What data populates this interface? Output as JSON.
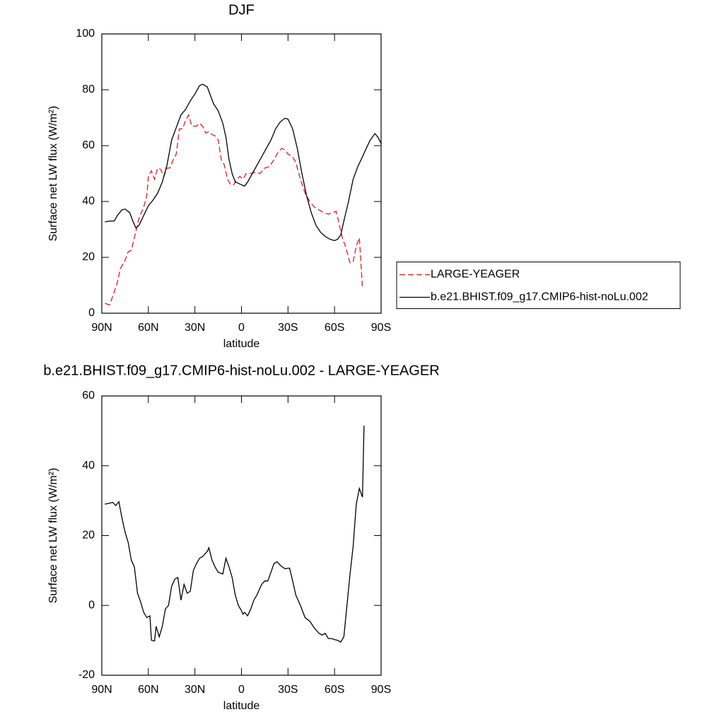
{
  "chart_data": [
    {
      "type": "line",
      "title": "DJF",
      "xlabel": "latitude",
      "ylabel": "Surface net LW flux (W/m²)",
      "xlim": [
        90,
        -90
      ],
      "ylim": [
        0,
        100
      ],
      "xticks": [
        {
          "value": 90,
          "label": "90N"
        },
        {
          "value": 60,
          "label": "60N"
        },
        {
          "value": 30,
          "label": "30N"
        },
        0,
        {
          "value": -30,
          "label": "30S"
        },
        {
          "value": -60,
          "label": "60S"
        },
        {
          "value": -90,
          "label": "90S"
        }
      ],
      "yticks": [
        0,
        20,
        40,
        60,
        80,
        100
      ],
      "legend": "right",
      "series": [
        {
          "name": "LARGE-YEAGER",
          "color": "#e41a1c",
          "dash": true,
          "x": [
            88,
            85,
            83,
            80,
            78,
            75,
            73,
            71,
            69,
            66,
            63,
            61,
            60,
            58,
            56,
            54,
            52,
            50,
            48,
            46,
            44,
            42,
            40,
            38,
            36,
            34,
            32,
            29,
            27,
            25,
            23,
            21,
            19,
            17,
            15,
            13,
            11,
            9,
            7,
            5,
            3,
            1,
            -1,
            -3,
            -6,
            -9,
            -12,
            -15,
            -18,
            -21,
            -24,
            -26,
            -28,
            -30,
            -33,
            -35,
            -38,
            -41,
            -44,
            -47,
            -50,
            -53,
            -56,
            -59,
            -61,
            -63,
            -65,
            -67,
            -70,
            -72,
            -74,
            -76,
            -78
          ],
          "values": [
            3.5,
            3,
            6,
            11,
            16,
            19,
            22,
            22.5,
            27,
            34,
            38,
            42,
            49,
            51,
            48,
            52,
            51.5,
            49,
            52,
            52,
            55,
            57,
            66,
            66,
            69,
            71,
            67,
            67,
            68,
            67,
            64.5,
            65,
            64,
            63.5,
            62,
            55,
            53,
            48,
            46,
            46,
            48,
            49,
            48,
            50,
            50,
            50.5,
            50,
            52,
            52.5,
            55,
            58,
            59,
            58.5,
            57,
            56,
            54,
            48,
            43,
            40,
            38,
            37,
            36,
            35.5,
            36,
            36.5,
            32,
            27,
            24,
            18,
            18.5,
            24,
            27,
            9
          ]
        },
        {
          "name": "b.e21.BHIST.f09_g17.CMIP6-hist-noLu.002",
          "color": "#000000",
          "dash": false,
          "x": [
            88,
            85,
            82,
            80,
            77,
            75,
            72,
            70,
            68,
            66,
            63,
            60,
            57,
            54,
            51,
            48,
            45,
            42,
            39,
            36,
            33,
            30,
            27,
            25,
            22,
            20,
            18,
            15,
            12,
            10,
            8,
            6,
            4,
            2,
            0,
            -2,
            -4,
            -7,
            -10,
            -13,
            -16,
            -19,
            -22,
            -25,
            -28,
            -30,
            -33,
            -36,
            -39,
            -42,
            -45,
            -48,
            -51,
            -54,
            -57,
            -60,
            -62,
            -64,
            -66,
            -69,
            -72,
            -75,
            -78,
            -80,
            -83,
            -86,
            -88,
            -90
          ],
          "values": [
            32.7,
            33,
            33,
            35,
            37,
            37.3,
            36,
            33,
            30.5,
            31.5,
            35,
            38.5,
            40.5,
            43,
            47,
            53,
            62,
            66.5,
            71,
            73,
            76,
            78.5,
            81.5,
            82,
            81,
            78,
            75,
            72.5,
            68,
            63,
            55,
            50,
            47,
            46.5,
            46,
            45.5,
            47,
            50,
            53,
            56,
            59,
            62,
            66,
            68.5,
            69.8,
            69.5,
            66,
            59,
            50,
            42,
            36,
            31.5,
            29,
            27.5,
            26.5,
            26,
            26.5,
            28,
            33,
            40,
            48,
            52.5,
            56,
            58.5,
            62,
            64.3,
            63,
            60.8
          ]
        }
      ]
    },
    {
      "type": "line",
      "title": "b.e21.BHIST.f09_g17.CMIP6-hist-noLu.002 - LARGE-YEAGER",
      "xlabel": "latitude",
      "ylabel": "Surface net LW flux (W/m²)",
      "xlim": [
        90,
        -90
      ],
      "ylim": [
        -20,
        60
      ],
      "xticks": [
        {
          "value": 90,
          "label": "90N"
        },
        {
          "value": 60,
          "label": "60N"
        },
        {
          "value": 30,
          "label": "30N"
        },
        0,
        {
          "value": -30,
          "label": "30S"
        },
        {
          "value": -60,
          "label": "60S"
        },
        {
          "value": -90,
          "label": "90S"
        }
      ],
      "yticks": [
        -20,
        0,
        20,
        40,
        60
      ],
      "series": [
        {
          "color": "#000000",
          "dash": false,
          "x": [
            88,
            85,
            83,
            81,
            79,
            77,
            75,
            73,
            71,
            69,
            67,
            65,
            63,
            61,
            59,
            58,
            56,
            55,
            53,
            51,
            49,
            47,
            45,
            43,
            41,
            39,
            37,
            35,
            33,
            31,
            29,
            27,
            25,
            22,
            21,
            19,
            17,
            15,
            12,
            10,
            8,
            6,
            4,
            2,
            0,
            -1,
            -2,
            -4,
            -6,
            -8,
            -10,
            -13,
            -15,
            -17,
            -19,
            -21,
            -23,
            -25,
            -28,
            -31,
            -33,
            -35,
            -38,
            -41,
            -44,
            -47,
            -50,
            -52,
            -54,
            -56,
            -58,
            -60,
            -62,
            -64,
            -66,
            -68,
            -70,
            -72,
            -74,
            -76,
            -78,
            -79
          ],
          "values": [
            29,
            29.3,
            29.5,
            28.6,
            29.7,
            25,
            21,
            18,
            13,
            11,
            3.5,
            1,
            -2,
            -3.5,
            -3,
            -10,
            -10.2,
            -6,
            -9,
            -6,
            -1,
            0,
            5.5,
            7.5,
            8,
            1.5,
            6,
            3.5,
            4,
            10,
            12,
            13.5,
            14,
            15.5,
            16.5,
            13,
            11,
            9.5,
            9,
            13.5,
            11,
            8,
            3,
            0,
            -1.5,
            -2.5,
            -2,
            -3,
            -1,
            1.5,
            3,
            6,
            7,
            7,
            9.5,
            12,
            12.5,
            11.5,
            10.5,
            10.7,
            7,
            3,
            0,
            -3.5,
            -4.5,
            -6.5,
            -8,
            -8.5,
            -8,
            -9.5,
            -9.5,
            -9.8,
            -10,
            -10.5,
            -9,
            0,
            9,
            17,
            29,
            33.5,
            31,
            51.5
          ]
        }
      ]
    }
  ]
}
